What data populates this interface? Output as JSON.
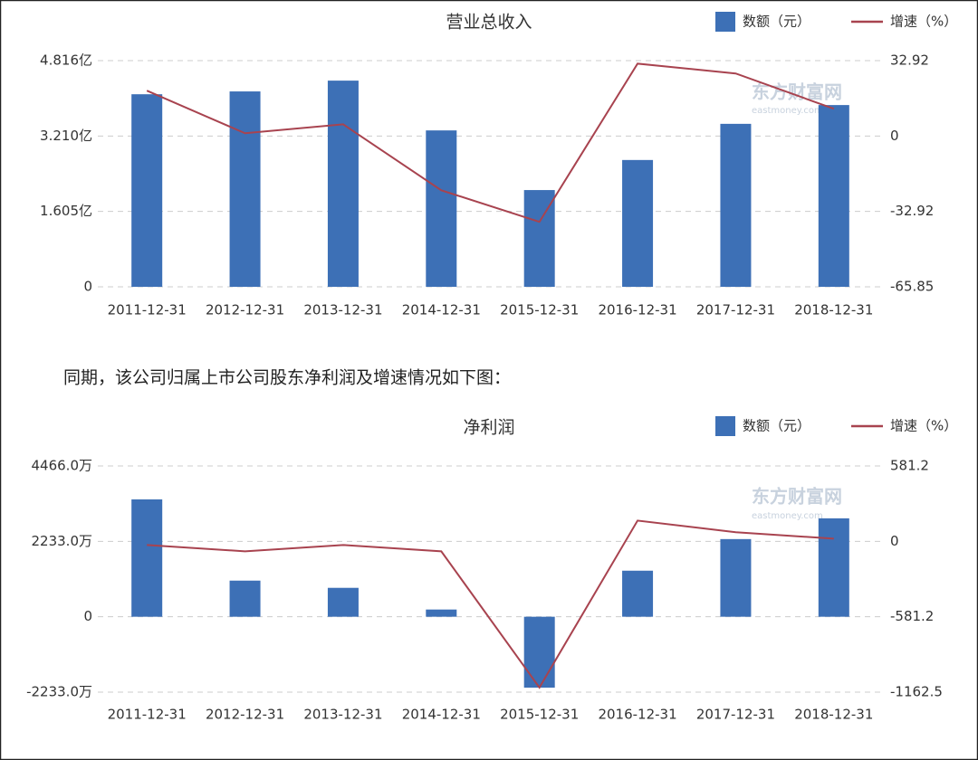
{
  "caption": "同期，该公司归属上市公司股东净利润及增速情况如下图：",
  "chart_data": [
    {
      "type": "bar_line",
      "title": "营业总收入",
      "watermark": "东方财富网",
      "watermark_sub": "eastmoney.com",
      "categories": [
        "2011-12-31",
        "2012-12-31",
        "2013-12-31",
        "2014-12-31",
        "2015-12-31",
        "2016-12-31",
        "2017-12-31",
        "2018-12-31"
      ],
      "series": [
        {
          "name": "数额（元）",
          "type": "bar",
          "color": "#3d70b6",
          "values": [
            4.1,
            4.16,
            4.39,
            3.33,
            2.06,
            2.7,
            3.47,
            3.87
          ]
        },
        {
          "name": "增速（%）",
          "type": "line",
          "axis": "y2",
          "color": "#a8434f",
          "values": [
            19.8,
            1.2,
            5.1,
            -23.7,
            -37.5,
            31.6,
            27.3,
            11.9
          ]
        }
      ],
      "ylim": [
        0,
        4.816
      ],
      "yticks": [
        0,
        {
          "value": 1.605,
          "label": "1.605亿"
        },
        {
          "value": 3.21,
          "label": "3.210亿"
        },
        {
          "value": 4.816,
          "label": "4.816亿"
        }
      ],
      "y2lim": [
        -65.85,
        32.92
      ],
      "y2ticks": [
        -65.85,
        -32.92,
        0,
        32.92
      ],
      "grid": true,
      "legend": "top-right"
    },
    {
      "type": "bar_line",
      "title": "净利润",
      "watermark": "东方财富网",
      "watermark_sub": "eastmoney.com",
      "categories": [
        "2011-12-31",
        "2012-12-31",
        "2013-12-31",
        "2014-12-31",
        "2015-12-31",
        "2016-12-31",
        "2017-12-31",
        "2018-12-31"
      ],
      "series": [
        {
          "name": "数额（元）",
          "type": "bar",
          "color": "#3d70b6",
          "values": [
            3476,
            1070,
            856,
            214,
            -2100,
            1364,
            2300,
            2915
          ]
        },
        {
          "name": "增速（%）",
          "type": "line",
          "axis": "y2",
          "color": "#a8434f",
          "values": [
            -28,
            -77,
            -28,
            -77,
            -1127,
            160,
            70,
            21
          ]
        }
      ],
      "ylim": [
        -2233.0,
        4466.0
      ],
      "yticks": [
        {
          "value": -2233.0,
          "label": "-2233.0万"
        },
        0,
        {
          "value": 2233.0,
          "label": "2233.0万"
        },
        {
          "value": 4466.0,
          "label": "4466.0万"
        }
      ],
      "y2lim": [
        -1162.5,
        581.2
      ],
      "y2ticks": [
        -1162.5,
        -581.2,
        0,
        581.2
      ],
      "grid": true,
      "legend": "top-right"
    }
  ]
}
